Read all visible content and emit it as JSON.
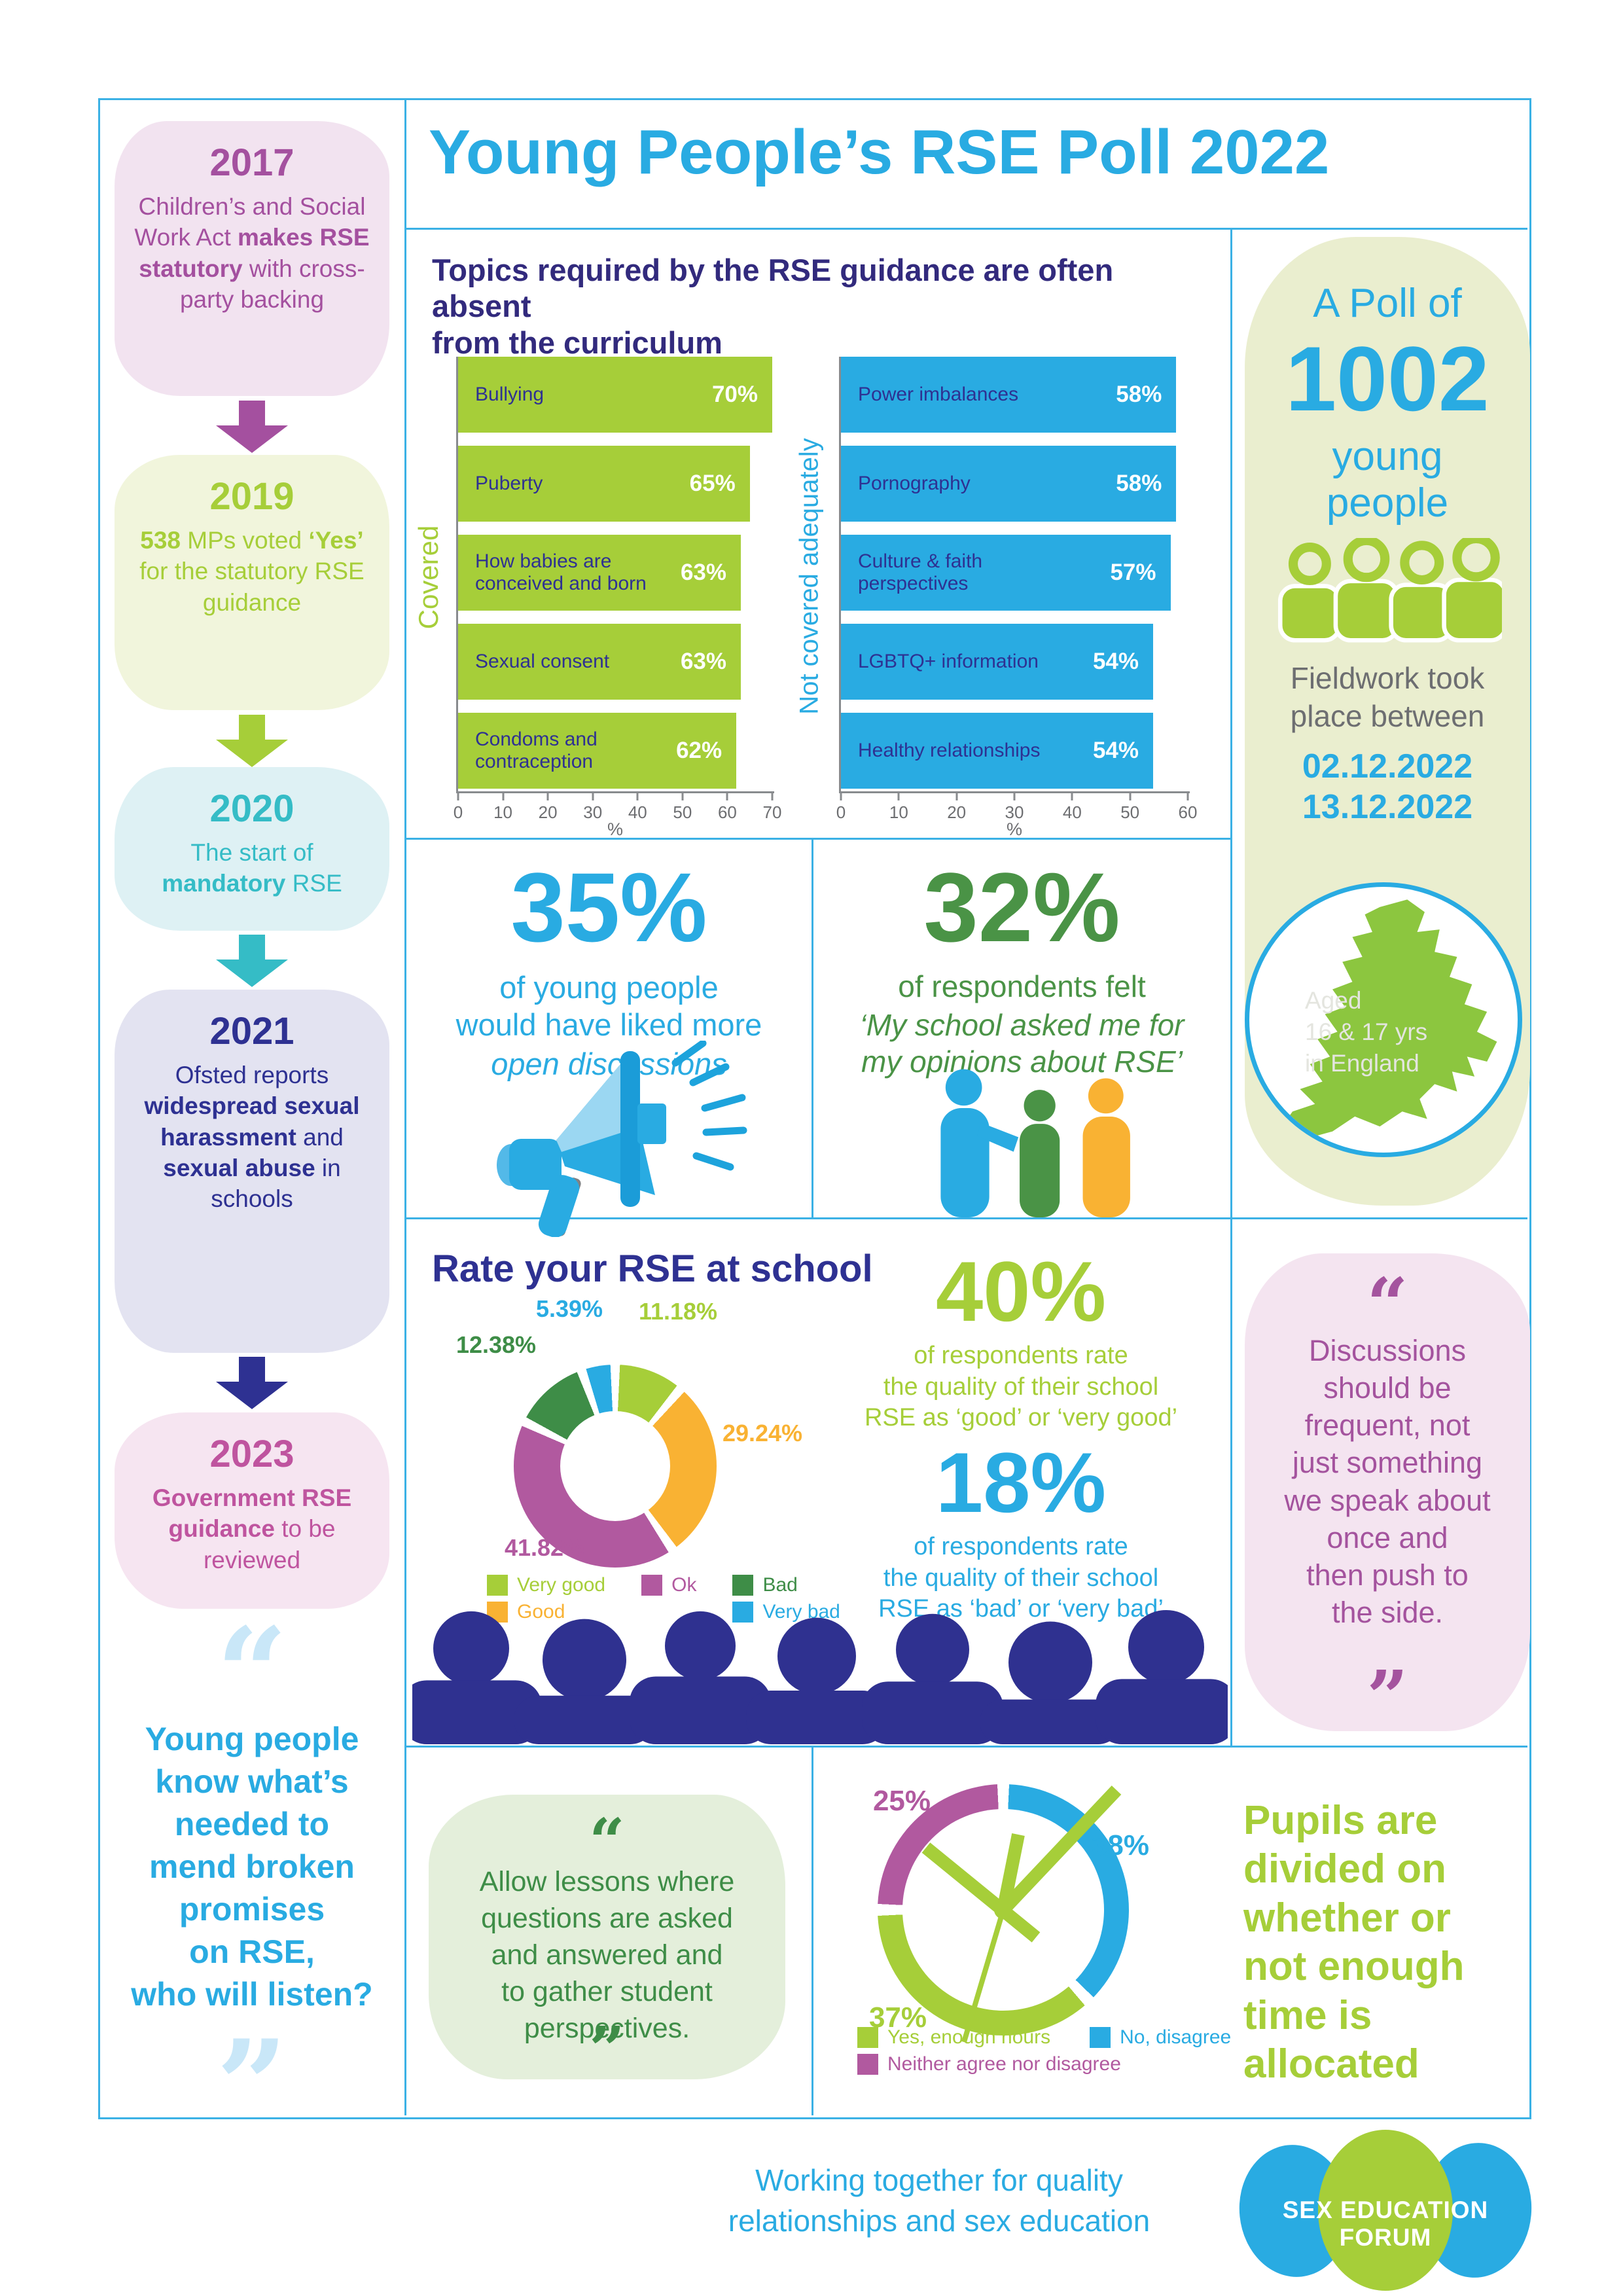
{
  "page_title": "Young People’s RSE Poll 2022",
  "palette": {
    "blue": "#29abe2",
    "lime": "#a6ce39",
    "navy": "#2e3192",
    "teal": "#35bcc6",
    "magenta": "#a4509f",
    "pink": "#bf549f",
    "dark_green": "#3e8d47",
    "mid_green": "#4a9346",
    "yellow": "#f9b233",
    "purple": "#b1599f",
    "gray": "#6d6e71",
    "map_green": "#8cc63f"
  },
  "timeline": {
    "items": [
      {
        "year": "2017",
        "parts": [
          "Children’s and Social Work Act ",
          "makes RSE statutory",
          " with cross-party backing"
        ]
      },
      {
        "year": "2019",
        "parts": [
          "538",
          " MPs voted ",
          "‘Yes’",
          " for the statutory RSE guidance"
        ]
      },
      {
        "year": "2020",
        "parts": [
          "The start of ",
          "mandatory",
          " RSE"
        ]
      },
      {
        "year": "2021",
        "parts": [
          "Ofsted reports ",
          "widespread sexual harassment",
          " and ",
          "sexual abuse",
          " in schools"
        ]
      },
      {
        "year": "2023",
        "parts": [
          "Government RSE guidance",
          " to be reviewed"
        ]
      }
    ],
    "quote": {
      "open": "“",
      "close": "”",
      "lines": [
        "Young people",
        "know what’s",
        "needed to",
        "mend broken",
        "promises",
        "on RSE,",
        "who will listen?"
      ]
    }
  },
  "topics_section": {
    "heading_lines": [
      "Topics required by the RSE guidance are often absent",
      "from the curriculum"
    ]
  },
  "chart_data": [
    {
      "id": "covered",
      "type": "bar",
      "orientation": "horizontal",
      "axis_label": "Covered",
      "categories": [
        "Bullying",
        "Puberty",
        "How babies are conceived and born",
        "Sexual consent",
        "Condoms and contraception"
      ],
      "values": [
        70,
        65,
        63,
        63,
        62
      ],
      "value_labels": [
        "70%",
        "65%",
        "63%",
        "63%",
        "62%"
      ],
      "xlim": [
        0,
        70
      ],
      "xtick_step": 10,
      "xlabel": "%",
      "bar_color": "#a6ce39",
      "grid": false,
      "legend": "none"
    },
    {
      "id": "not_covered",
      "type": "bar",
      "orientation": "horizontal",
      "axis_label": "Not covered adequately",
      "categories": [
        "Power imbalances",
        "Pornography",
        "Culture & faith perspectives",
        "LGBTQ+ information",
        "Healthy relationships"
      ],
      "values": [
        58,
        58,
        57,
        54,
        54
      ],
      "value_labels": [
        "58%",
        "58%",
        "57%",
        "54%",
        "54%"
      ],
      "xlim": [
        0,
        60
      ],
      "xtick_step": 10,
      "xlabel": "%",
      "bar_color": "#29abe2",
      "grid": false,
      "legend": "none"
    },
    {
      "id": "rate_rse",
      "type": "pie",
      "subtype": "donut",
      "title": "Rate your RSE at school",
      "labels": [
        "Very good",
        "Good",
        "Ok",
        "Bad",
        "Very bad"
      ],
      "values": [
        11.18,
        29.24,
        41.82,
        12.38,
        5.39
      ],
      "value_labels": [
        "11.18%",
        "29.24%",
        "41.82%",
        "12.38%",
        "5.39%"
      ],
      "colors": [
        "#a6ce39",
        "#f9b233",
        "#b1599f",
        "#3e8d47",
        "#29abe2"
      ],
      "legend_position": "bottom"
    },
    {
      "id": "time_allocated",
      "type": "pie",
      "subtype": "donut-clock",
      "labels": [
        "No, disagree",
        "Yes, enough hours",
        "Neither agree nor disagree"
      ],
      "values": [
        38,
        37,
        25
      ],
      "value_labels": [
        "38%",
        "37%",
        "25%"
      ],
      "colors": [
        "#29abe2",
        "#a6ce39",
        "#b1599f"
      ],
      "legend_position": "bottom"
    }
  ],
  "stat_35": {
    "value": "35%",
    "lines": [
      "of young people",
      "would have liked more"
    ],
    "italic_line": "open discussions"
  },
  "stat_32": {
    "value": "32%",
    "line1": "of respondents felt",
    "quote_lines": [
      "‘My school asked me for",
      "my opinions about RSE’"
    ]
  },
  "sidebar": {
    "poll_intro": "A Poll of",
    "poll_count": "1002",
    "poll_lines": [
      "young",
      "people"
    ],
    "fieldwork_lines": [
      "Fieldwork took",
      "place between"
    ],
    "date_lines": [
      "02.12.2022",
      "13.12.2022"
    ],
    "map_lines": [
      "Aged",
      "16 & 17 yrs",
      "in England"
    ]
  },
  "rate_section": {
    "title": "Rate your RSE at school",
    "stat_good": {
      "value": "40%",
      "lines": [
        "of respondents rate",
        "the quality of their school",
        "RSE as ‘good’ or ‘very good’"
      ]
    },
    "stat_bad": {
      "value": "18%",
      "lines": [
        "of respondents rate",
        "the quality of their school",
        "RSE as ‘bad’ or ‘very bad’"
      ]
    }
  },
  "quote_discussions": {
    "open": "“",
    "close": "”",
    "lines": [
      "Discussions",
      "should be",
      "frequent, not",
      "just something",
      "we speak about",
      "once and",
      "then push to",
      "the side."
    ]
  },
  "quote_allow": {
    "open": "“",
    "close": "”",
    "lines": [
      "Allow lessons where",
      "questions are asked",
      "and answered and",
      "to gather student",
      "perspectives."
    ]
  },
  "time_section": {
    "caption_lines": [
      "Pupils are",
      "divided on",
      "whether or",
      "not enough",
      "time is",
      "allocated"
    ]
  },
  "footer": {
    "tagline_lines": [
      "Working together for quality",
      "relationships and sex education"
    ],
    "logo_text": "SEX EDUCATION FORUM"
  }
}
